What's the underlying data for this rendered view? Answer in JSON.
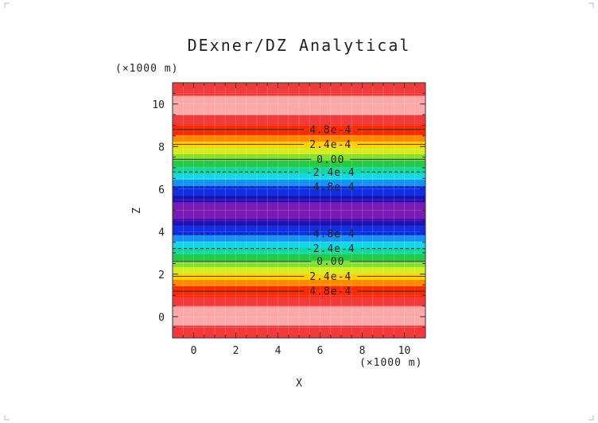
{
  "chart_data": {
    "type": "heatmap",
    "title": "DExner/DZ Analytical",
    "xlabel": "X",
    "ylabel": "Z",
    "x_unit_label": "(×1000 m)",
    "y_unit_label": "(×1000 m)",
    "xlim": [
      -1,
      11
    ],
    "ylim": [
      -1,
      11
    ],
    "x_ticks": [
      0,
      2,
      4,
      6,
      8,
      10
    ],
    "y_ticks": [
      0,
      2,
      4,
      6,
      8,
      10
    ],
    "grid": true,
    "field": {
      "varies_along": "z",
      "center_z": 5,
      "bands": [
        {
          "z0": -1.0,
          "z1": -0.4,
          "color": "#f33a3a"
        },
        {
          "z0": -0.4,
          "z1": 0.5,
          "color": "#fba8a8"
        },
        {
          "z0": 0.5,
          "z1": 0.95,
          "color": "#f33a3a"
        },
        {
          "z0": 0.95,
          "z1": 1.45,
          "color": "#ff2a00"
        },
        {
          "z0": 1.45,
          "z1": 1.75,
          "color": "#ff8800"
        },
        {
          "z0": 1.75,
          "z1": 2.05,
          "color": "#ffd000"
        },
        {
          "z0": 2.05,
          "z1": 2.35,
          "color": "#d4ee20"
        },
        {
          "z0": 2.35,
          "z1": 2.65,
          "color": "#7ee030"
        },
        {
          "z0": 2.65,
          "z1": 2.95,
          "color": "#22cc44"
        },
        {
          "z0": 2.95,
          "z1": 3.25,
          "color": "#10d8a0"
        },
        {
          "z0": 3.25,
          "z1": 3.55,
          "color": "#10d8e8"
        },
        {
          "z0": 3.55,
          "z1": 3.85,
          "color": "#1890f4"
        },
        {
          "z0": 3.85,
          "z1": 4.3,
          "color": "#1030e0"
        },
        {
          "z0": 4.3,
          "z1": 4.6,
          "color": "#2010b0"
        },
        {
          "z0": 4.6,
          "z1": 5.4,
          "color": "#7a1ab4"
        },
        {
          "z0": 5.4,
          "z1": 5.7,
          "color": "#2010b0"
        },
        {
          "z0": 5.7,
          "z1": 6.15,
          "color": "#1030e0"
        },
        {
          "z0": 6.15,
          "z1": 6.45,
          "color": "#1890f4"
        },
        {
          "z0": 6.45,
          "z1": 6.75,
          "color": "#10d8e8"
        },
        {
          "z0": 6.75,
          "z1": 7.05,
          "color": "#10d8a0"
        },
        {
          "z0": 7.05,
          "z1": 7.35,
          "color": "#22cc44"
        },
        {
          "z0": 7.35,
          "z1": 7.65,
          "color": "#7ee030"
        },
        {
          "z0": 7.65,
          "z1": 7.95,
          "color": "#d4ee20"
        },
        {
          "z0": 7.95,
          "z1": 8.25,
          "color": "#ffd000"
        },
        {
          "z0": 8.25,
          "z1": 8.55,
          "color": "#ff8800"
        },
        {
          "z0": 8.55,
          "z1": 9.05,
          "color": "#ff2a00"
        },
        {
          "z0": 9.05,
          "z1": 9.5,
          "color": "#f33a3a"
        },
        {
          "z0": 9.5,
          "z1": 10.4,
          "color": "#fba8a8"
        },
        {
          "z0": 10.4,
          "z1": 11.0,
          "color": "#f33a3a"
        }
      ]
    },
    "contours": [
      {
        "z": 8.8,
        "label": "4.8e-4",
        "dashed": false
      },
      {
        "z": 8.1,
        "label": "2.4e-4",
        "dashed": false
      },
      {
        "z": 7.4,
        "label": "0.00",
        "dashed": false
      },
      {
        "z": 6.8,
        "label": "-2.4e-4",
        "dashed": true
      },
      {
        "z": 6.1,
        "label": "-4.8e-4",
        "dashed": true
      },
      {
        "z": 3.9,
        "label": "-4.8e-4",
        "dashed": true
      },
      {
        "z": 3.2,
        "label": "-2.4e-4",
        "dashed": true
      },
      {
        "z": 2.6,
        "label": "0.00",
        "dashed": false
      },
      {
        "z": 1.9,
        "label": "2.4e-4",
        "dashed": false
      },
      {
        "z": 1.2,
        "label": "4.8e-4",
        "dashed": false
      }
    ],
    "contour_label_x": 6.5
  }
}
